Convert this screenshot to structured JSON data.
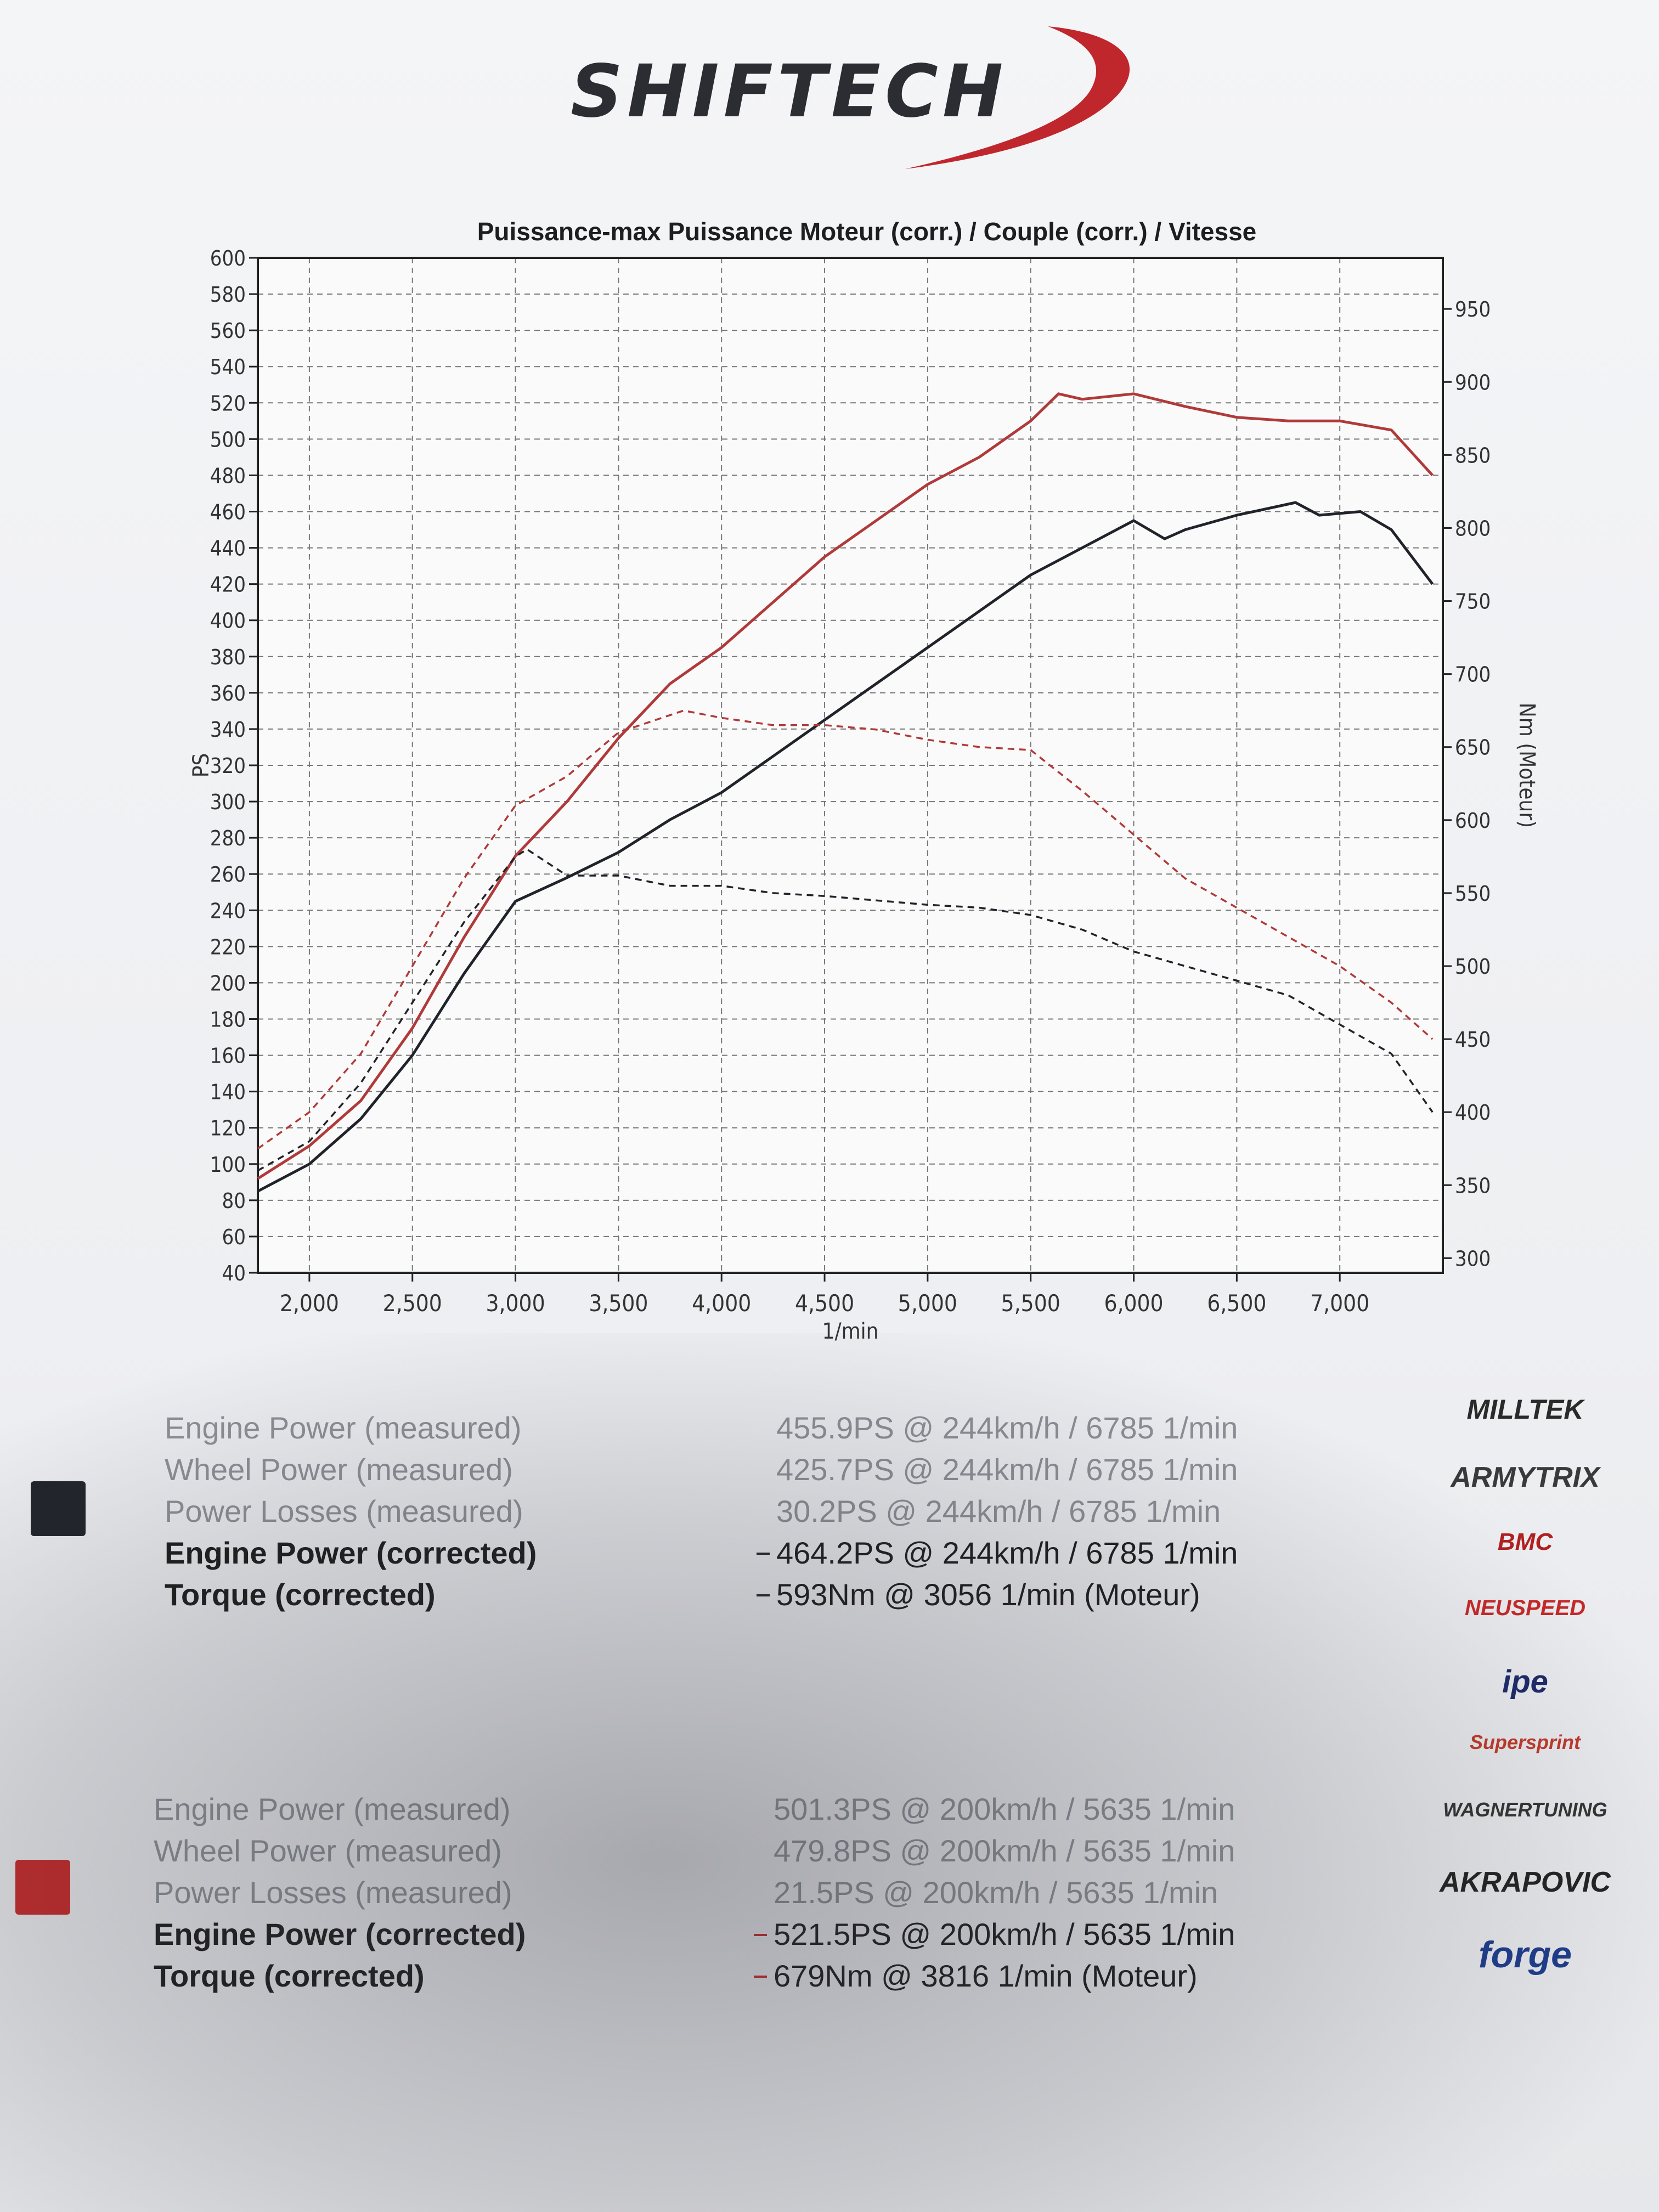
{
  "brand": {
    "name": "SHIFTECH",
    "color": "#c0272d"
  },
  "chart_data": {
    "type": "line",
    "title": "Puissance-max Puissance Moteur (corr.) / Couple (corr.) / Vitesse",
    "xlabel": "1/min",
    "ylabel": "PS",
    "y2label": "Nm (Moteur)",
    "xlim": [
      1750,
      7500
    ],
    "ylim": [
      40,
      600
    ],
    "y2lim": [
      290,
      985
    ],
    "xticks": [
      "2,000",
      "2,500",
      "3,000",
      "3,500",
      "4,000",
      "4,500",
      "5,000",
      "5,500",
      "6,000",
      "6,500",
      "7,000"
    ],
    "xtick_values": [
      2000,
      2500,
      3000,
      3500,
      4000,
      4500,
      5000,
      5500,
      6000,
      6500,
      7000
    ],
    "yticks": [
      40,
      60,
      80,
      100,
      120,
      140,
      160,
      180,
      200,
      220,
      240,
      260,
      280,
      300,
      320,
      340,
      360,
      380,
      400,
      420,
      440,
      460,
      480,
      500,
      520,
      540,
      560,
      580,
      600
    ],
    "y2ticks": [
      300,
      350,
      400,
      450,
      500,
      550,
      600,
      650,
      700,
      750,
      800,
      850,
      900,
      950
    ],
    "grid": true,
    "series": [
      {
        "color": "#b03a3a",
        "style": "solid",
        "axis": "left",
        "x": [
          1750,
          2000,
          2250,
          2500,
          2750,
          3000,
          3250,
          3500,
          3750,
          4000,
          4250,
          4500,
          4750,
          5000,
          5250,
          5500,
          5635,
          5750,
          6000,
          6250,
          6500,
          6750,
          7000,
          7250,
          7450
        ],
        "y": [
          92,
          110,
          135,
          175,
          225,
          270,
          300,
          335,
          365,
          385,
          410,
          435,
          455,
          475,
          490,
          510,
          525,
          522,
          525,
          518,
          512,
          510,
          510,
          505,
          480
        ]
      },
      {
        "color": "#20242a",
        "style": "solid",
        "axis": "left",
        "x": [
          1750,
          2000,
          2250,
          2500,
          2750,
          3000,
          3250,
          3500,
          3750,
          4000,
          4250,
          4500,
          4750,
          5000,
          5250,
          5500,
          5750,
          6000,
          6150,
          6250,
          6500,
          6785,
          6900,
          7100,
          7250,
          7450
        ],
        "y": [
          85,
          100,
          125,
          160,
          205,
          245,
          258,
          272,
          290,
          305,
          325,
          345,
          365,
          385,
          405,
          425,
          440,
          455,
          445,
          450,
          458,
          465,
          458,
          460,
          450,
          420
        ]
      },
      {
        "color": "#b03a3a",
        "style": "dashed",
        "axis": "right",
        "x": [
          1750,
          2000,
          2250,
          2500,
          2750,
          3000,
          3250,
          3500,
          3816,
          4000,
          4250,
          4500,
          4750,
          5000,
          5250,
          5500,
          5750,
          6000,
          6250,
          6500,
          6750,
          7000,
          7250,
          7450
        ],
        "y": [
          375,
          400,
          440,
          500,
          560,
          610,
          630,
          660,
          675,
          670,
          665,
          665,
          662,
          655,
          650,
          648,
          620,
          590,
          560,
          540,
          520,
          500,
          475,
          450
        ]
      },
      {
        "color": "#20242a",
        "style": "dashed",
        "axis": "right",
        "x": [
          1750,
          2000,
          2250,
          2500,
          2750,
          3000,
          3056,
          3250,
          3500,
          3750,
          4000,
          4250,
          4500,
          4750,
          5000,
          5250,
          5500,
          5750,
          6000,
          6250,
          6500,
          6750,
          7000,
          7250,
          7450
        ],
        "y": [
          360,
          380,
          420,
          475,
          530,
          575,
          580,
          562,
          562,
          555,
          555,
          550,
          548,
          545,
          542,
          540,
          535,
          525,
          510,
          500,
          490,
          480,
          460,
          440,
          400
        ]
      }
    ]
  },
  "results": {
    "run1": {
      "color": "#20242a",
      "rows": [
        {
          "label": "Engine Power (measured)",
          "value": "455.9PS @ 244km/h / 6785 1/min",
          "style": "muted"
        },
        {
          "label": "Wheel Power (measured)",
          "value": "425.7PS @ 244km/h / 6785 1/min",
          "style": "muted"
        },
        {
          "label": "Power Losses (measured)",
          "value": "30.2PS @ 244km/h / 6785 1/min",
          "style": "muted"
        },
        {
          "label": "Engine Power (corrected)",
          "value": "464.2PS @ 244km/h / 6785 1/min",
          "style": "bold"
        },
        {
          "label": "Torque (corrected)",
          "value": "593Nm @ 3056 1/min (Moteur)",
          "style": "bold"
        }
      ]
    },
    "run2": {
      "color": "#c62828",
      "rows": [
        {
          "label": "Engine Power (measured)",
          "value": "501.3PS @ 200km/h / 5635 1/min",
          "style": "muted"
        },
        {
          "label": "Wheel Power (measured)",
          "value": "479.8PS @ 200km/h / 5635 1/min",
          "style": "muted"
        },
        {
          "label": "Power Losses (measured)",
          "value": "21.5PS @ 200km/h / 5635 1/min",
          "style": "muted"
        },
        {
          "label": "Engine Power (corrected)",
          "value": "521.5PS @ 200km/h / 5635 1/min",
          "style": "bold"
        },
        {
          "label": "Torque (corrected)",
          "value": "679Nm @ 3816 1/min (Moteur)",
          "style": "bold"
        }
      ]
    }
  },
  "sponsors": [
    "MILLTEK",
    "ARMYTRIX",
    "BMC",
    "NEUSPEED",
    "ipe",
    "Supersprint",
    "WAGNERTUNING",
    "AKRAPOVIC",
    "forge"
  ]
}
